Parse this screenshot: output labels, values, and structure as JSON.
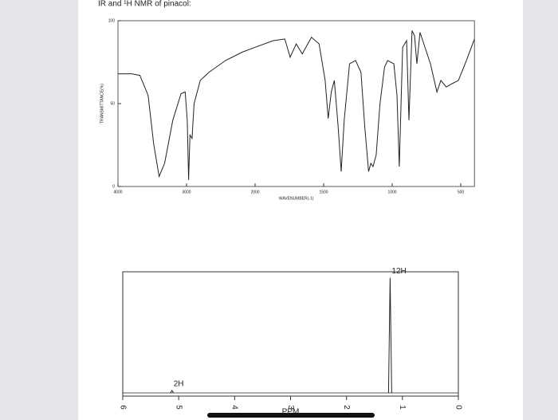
{
  "header": {
    "title": "IR and ¹H NMR of pinacol:"
  },
  "chart_data": [
    {
      "type": "line",
      "x_label": "WAVENUMBER(-1)",
      "y_label": "TRANSMITTANCE(%)",
      "xlim": [
        4000,
        400
      ],
      "xticks": [
        4000,
        3000,
        2000,
        1500,
        1000,
        500
      ],
      "ylim": [
        0,
        100
      ],
      "yticks": [
        0,
        50,
        100
      ],
      "series": [
        {
          "color": "#222222",
          "x": [
            4000,
            3800,
            3680,
            3560,
            3480,
            3400,
            3320,
            3200,
            3080,
            3020,
            2990,
            2970,
            2950,
            2920,
            2890,
            2800,
            2670,
            2430,
            2190,
            2000,
            1867,
            1783,
            1744,
            1700,
            1656,
            1589,
            1533,
            1489,
            1467,
            1444,
            1422,
            1394,
            1372,
            1350,
            1311,
            1267,
            1228,
            1200,
            1172,
            1156,
            1140,
            1117,
            1089,
            1056,
            1033,
            988,
            965,
            948,
            924,
            895,
            878,
            855,
            837,
            820,
            797,
            721,
            674,
            645,
            605,
            564,
            517,
            459,
            400
          ],
          "values": [
            68,
            68,
            67,
            55,
            26,
            6,
            14,
            40,
            56,
            57,
            40,
            4,
            31,
            29,
            50,
            64,
            69,
            76,
            81,
            84,
            88,
            89,
            78,
            86,
            80,
            90,
            86,
            64,
            41,
            57,
            64,
            36,
            9,
            40,
            74,
            76,
            69,
            36,
            9,
            14,
            12,
            19,
            50,
            72,
            76,
            74,
            55,
            12,
            84,
            88,
            40,
            94,
            91,
            74,
            93,
            74,
            57,
            64,
            60,
            62,
            64,
            76,
            89
          ]
        }
      ]
    },
    {
      "type": "nmr",
      "x_label": "PPM",
      "xlim": [
        6,
        0
      ],
      "xticks": [
        6,
        5,
        4,
        3,
        2,
        1,
        0
      ],
      "ylim": [
        0,
        100
      ],
      "peaks_x": [
        5.12,
        1.22
      ],
      "peak_heights": [
        2,
        95
      ],
      "peak_labels": [
        "2H",
        "12H"
      ],
      "color": "#222222"
    }
  ]
}
